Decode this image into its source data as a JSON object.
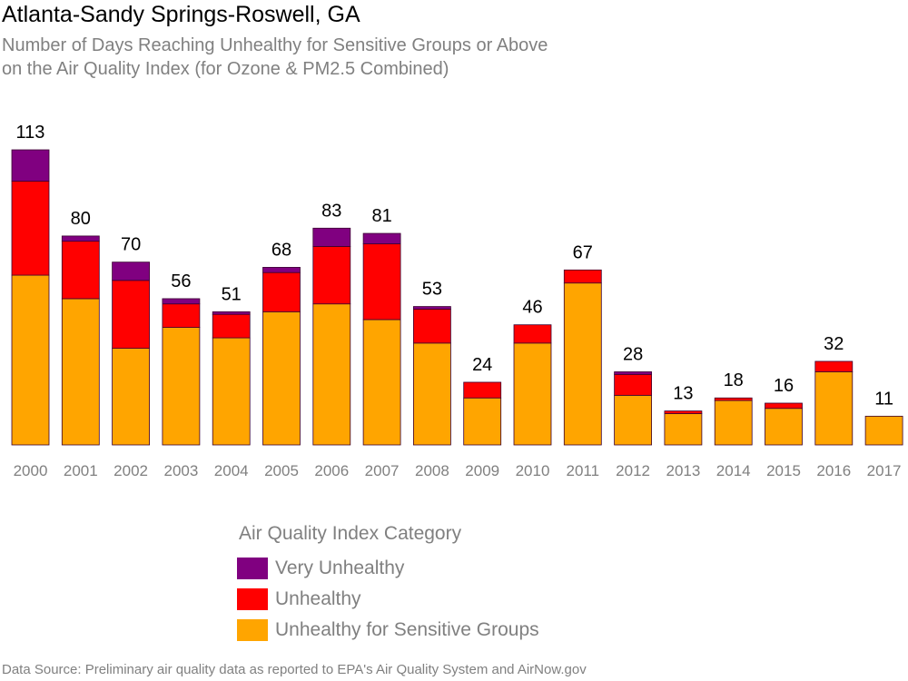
{
  "title": "Atlanta-Sandy Springs-Roswell, GA",
  "subtitle_line1": "Number of Days Reaching Unhealthy for Sensitive Groups or Above",
  "subtitle_line2": "on the Air Quality Index (for Ozone & PM2.5 Combined)",
  "legend": {
    "title": "Air Quality Index Category",
    "items": [
      {
        "label": "Very Unhealthy",
        "color": "#800080"
      },
      {
        "label": "Unhealthy",
        "color": "#ff0000"
      },
      {
        "label": "Unhealthy for Sensitive Groups",
        "color": "#ffa500"
      }
    ]
  },
  "source": "Data Source: Preliminary air quality data as reported to EPA's Air Quality System and AirNow.gov",
  "chart_data": {
    "type": "bar",
    "stacked": true,
    "categories": [
      "2000",
      "2001",
      "2002",
      "2003",
      "2004",
      "2005",
      "2006",
      "2007",
      "2008",
      "2009",
      "2010",
      "2011",
      "2012",
      "2013",
      "2014",
      "2015",
      "2016",
      "2017"
    ],
    "series": [
      {
        "name": "Unhealthy for Sensitive Groups",
        "color": "#ffa500",
        "values": [
          65,
          56,
          37,
          45,
          41,
          51,
          54,
          48,
          39,
          18,
          39,
          62,
          19,
          12,
          17,
          14,
          28,
          11
        ]
      },
      {
        "name": "Unhealthy",
        "color": "#ff0000",
        "values": [
          36,
          22,
          26,
          9,
          9,
          15,
          22,
          29,
          13,
          6,
          7,
          5,
          8,
          1,
          1,
          2,
          4,
          0
        ]
      },
      {
        "name": "Very Unhealthy",
        "color": "#800080",
        "values": [
          12,
          2,
          7,
          2,
          1,
          2,
          7,
          4,
          1,
          0,
          0,
          0,
          1,
          0,
          0,
          0,
          0,
          0
        ]
      }
    ],
    "totals": [
      113,
      80,
      70,
      56,
      51,
      68,
      83,
      81,
      53,
      24,
      46,
      67,
      28,
      13,
      18,
      16,
      32,
      11
    ],
    "ylim": [
      0,
      113
    ],
    "grid": false,
    "legend_position": "bottom"
  }
}
